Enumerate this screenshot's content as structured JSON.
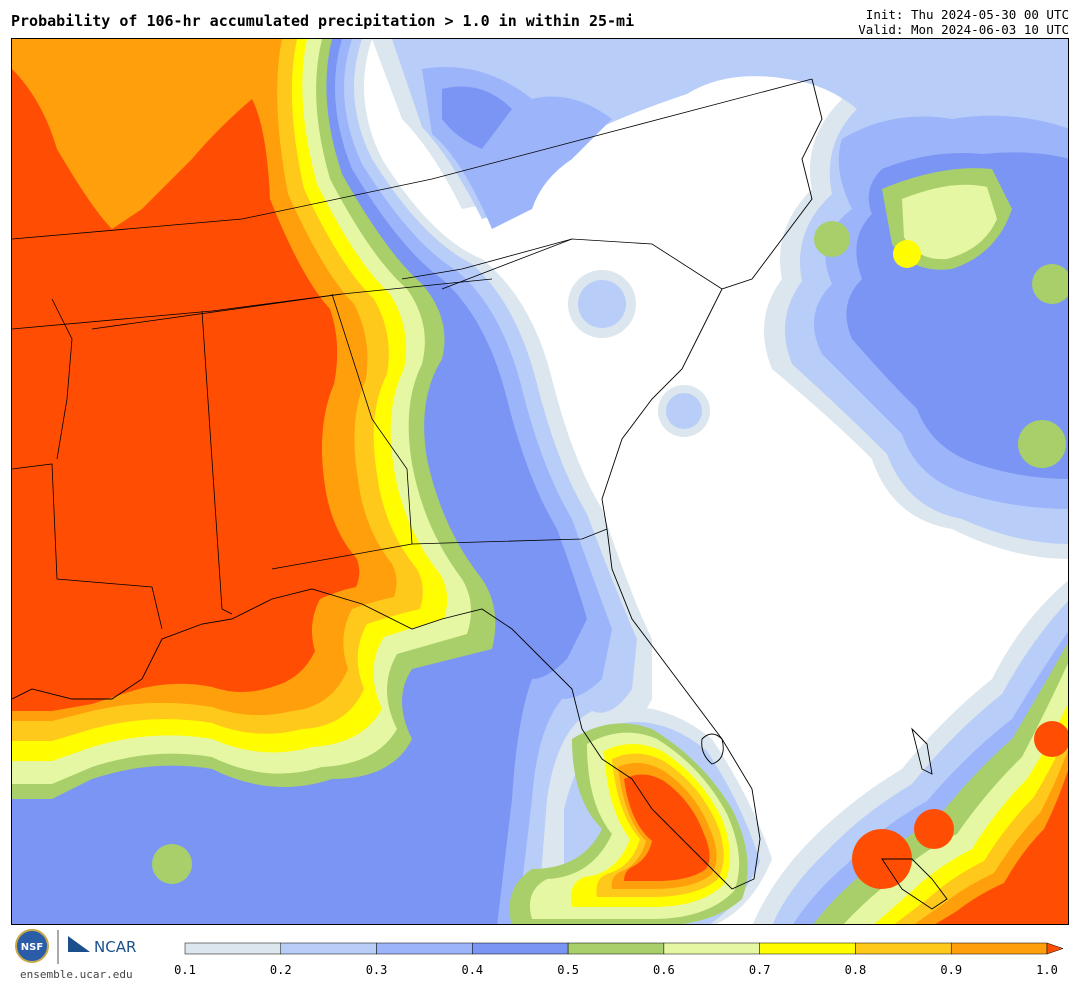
{
  "header": {
    "title": "Probability of 106-hr accumulated precipitation > 1.0 in within 25-mi",
    "init": "Init: Thu 2024-05-30 00 UTC",
    "valid": "Valid: Mon 2024-06-03 10 UTC"
  },
  "footer": {
    "site": "ensemble.ucar.edu",
    "logo_nsf": "NSF",
    "logo_ncar": "NCAR"
  },
  "legend": {
    "ticks": [
      "0.1",
      "0.2",
      "0.3",
      "0.4",
      "0.5",
      "0.6",
      "0.7",
      "0.8",
      "0.9",
      "1.0"
    ],
    "colors": [
      "#dbe6ee",
      "#b8cdf8",
      "#9cb4fa",
      "#7b95f4",
      "#a9cf6a",
      "#e6f7a4",
      "#fffd00",
      "#ffc91b",
      "#ff9f0b"
    ],
    "overflow_color": "#ff4e04"
  },
  "palette": {
    "p10": "#dbe6ee",
    "p20": "#b8cdf8",
    "p30": "#9cb4fa",
    "p40": "#7b95f4",
    "p50": "#a9cf6a",
    "p60": "#e6f7a4",
    "p70": "#fffd00",
    "p80": "#ffc91b",
    "p90": "#ff9f0b",
    "p100": "#ff4e04"
  }
}
